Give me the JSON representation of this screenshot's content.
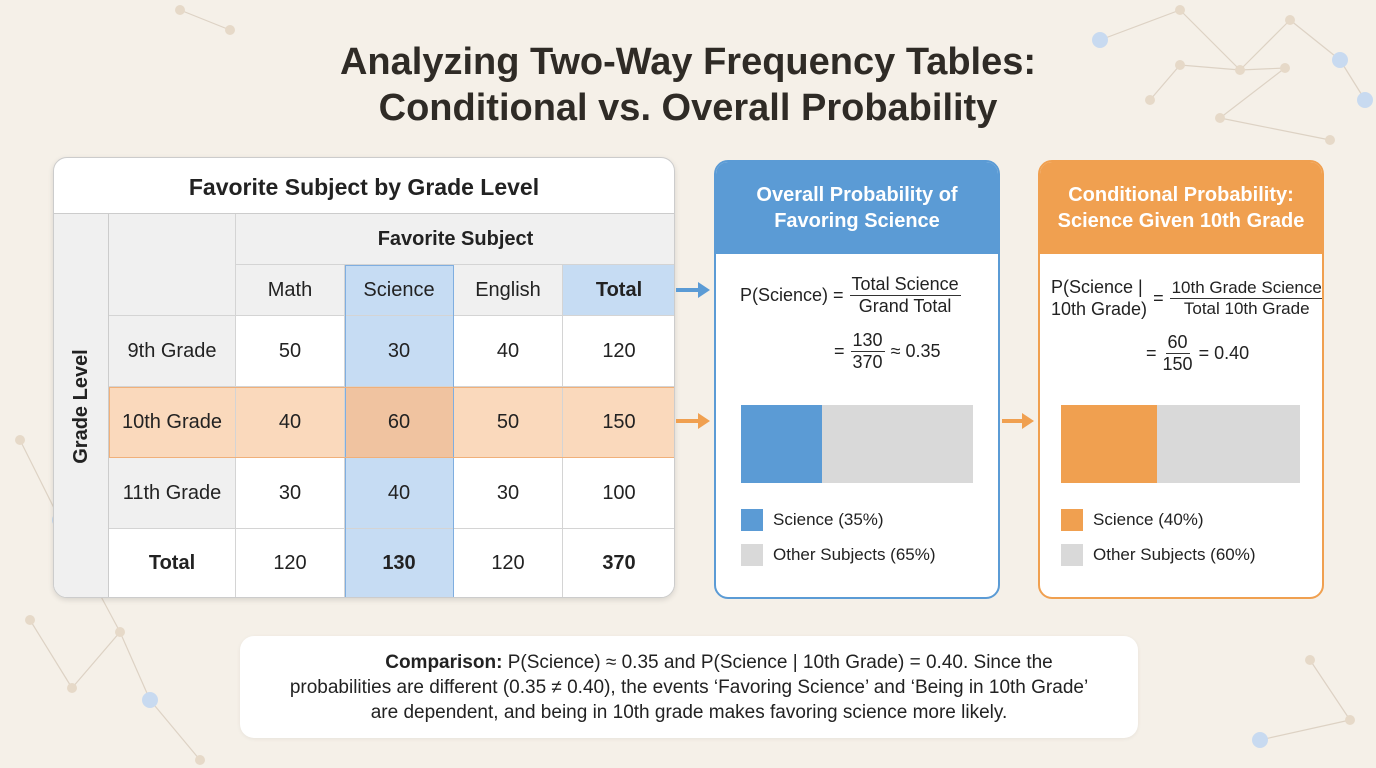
{
  "title_line1": "Analyzing Two-Way Frequency Tables:",
  "title_line2": "Conditional vs. Overall Probability",
  "colors": {
    "blue": "#5b9bd5",
    "blue_light": "#c6dcf3",
    "orange": "#f0a050",
    "orange_light": "#fad9bc",
    "gray": "#d9d9d9"
  },
  "table": {
    "title": "Favorite Subject by Grade Level",
    "row_axis_label": "Grade Level",
    "col_axis_label": "Favorite Subject",
    "columns": [
      "Math",
      "Science",
      "English",
      "Total"
    ],
    "rows": [
      {
        "label": "9th Grade",
        "values": [
          "50",
          "30",
          "40",
          "120"
        ]
      },
      {
        "label": "10th Grade",
        "values": [
          "40",
          "60",
          "50",
          "150"
        ]
      },
      {
        "label": "11th Grade",
        "values": [
          "30",
          "40",
          "30",
          "100"
        ]
      },
      {
        "label": "Total",
        "values": [
          "120",
          "130",
          "120",
          "370"
        ]
      }
    ]
  },
  "overall": {
    "title": "Overall Probability of Favoring Science",
    "lhs": "P(Science) =",
    "num": "Total Science",
    "den": "Grand Total",
    "eq": "=",
    "num2": "130",
    "den2": "370",
    "result": "≈ 0.35",
    "science_fraction": 0.35,
    "legend": [
      "Science (35%)",
      "Other Subjects (65%)"
    ]
  },
  "conditional": {
    "title": "Conditional Probability: Science Given 10th Grade",
    "lhs1": "P(Science |",
    "lhs2": "10th Grade)",
    "eqs": "=",
    "num": "10th Grade Science",
    "den": "Total 10th Grade",
    "eq": "=",
    "num2": "60",
    "den2": "150",
    "result": "= 0.40",
    "science_fraction": 0.4,
    "legend": [
      "Science (40%)",
      "Other Subjects (60%)"
    ]
  },
  "comparison": {
    "label": "Comparison:",
    "line1": " P(Science) ≈ 0.35 and P(Science | 10th Grade) = 0.40. Since the",
    "line2": "probabilities are different (0.35 ≠ 0.40), the events ‘Favoring Science’ and ‘Being in 10th Grade’",
    "line3": "are dependent, and being in 10th grade makes favoring science more likely."
  }
}
